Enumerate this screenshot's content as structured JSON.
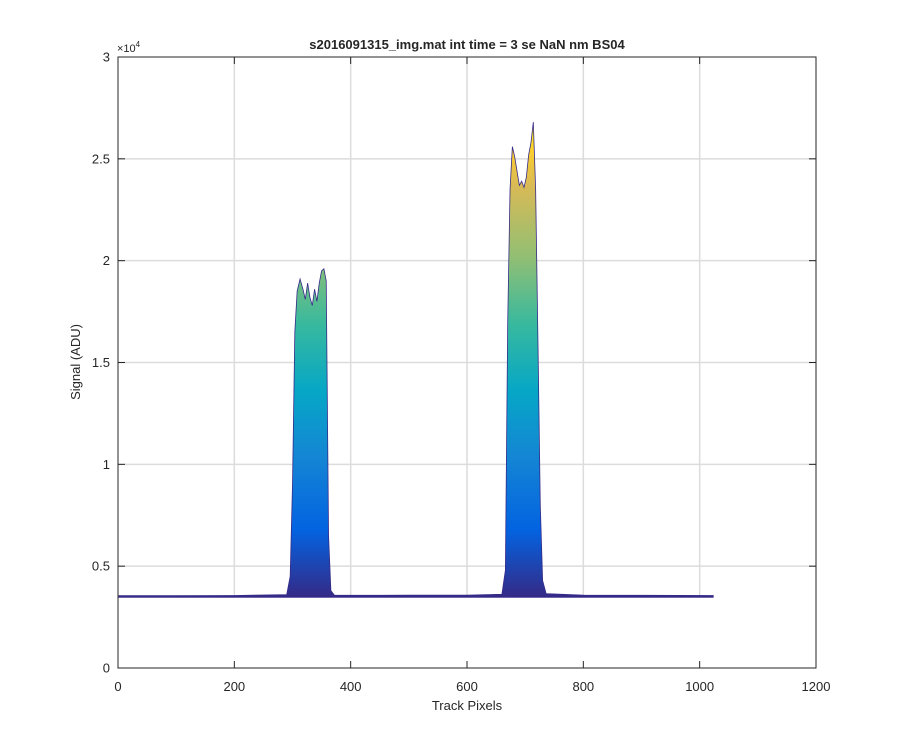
{
  "chart_data": {
    "type": "area",
    "title": "s2016091315_img.mat int time = 3 se  NaN nm BS04",
    "xlabel": "Track Pixels",
    "ylabel": "Signal (ADU)",
    "xlim": [
      0,
      1200
    ],
    "ylim": [
      0,
      30000
    ],
    "x_ticks": [
      0,
      200,
      400,
      600,
      800,
      1000,
      1200
    ],
    "x_tick_labels": [
      "0",
      "200",
      "400",
      "600",
      "800",
      "1000",
      "1200"
    ],
    "y_ticks": [
      0,
      5000,
      10000,
      15000,
      20000,
      25000,
      30000
    ],
    "y_tick_labels": [
      "0",
      "0.5",
      "1",
      "1.5",
      "2",
      "2.5",
      "3"
    ],
    "y_exponent_label": "×10",
    "y_exponent_power": "4",
    "grid": true,
    "colormap": "parula",
    "color_range": [
      3500,
      27000
    ],
    "series": [
      {
        "x": [
          1,
          100,
          200,
          290,
          296,
          300,
          304,
          308,
          313,
          318,
          322,
          326,
          330,
          334,
          338,
          342,
          346,
          350,
          354,
          358,
          362,
          366,
          372,
          400,
          500,
          600,
          660,
          666,
          670,
          674,
          678,
          682,
          686,
          690,
          694,
          698,
          702,
          706,
          710,
          714,
          718,
          722,
          726,
          730,
          736,
          800,
          900,
          1024
        ],
        "y": [
          3550,
          3555,
          3560,
          3600,
          4500,
          9000,
          16500,
          18500,
          19100,
          18600,
          18100,
          18900,
          18200,
          17800,
          18600,
          18000,
          18900,
          19500,
          19600,
          19000,
          6500,
          3800,
          3580,
          3570,
          3575,
          3580,
          3620,
          4800,
          17000,
          23500,
          25600,
          25100,
          24400,
          23700,
          23900,
          23600,
          24100,
          25200,
          25800,
          26800,
          23500,
          16000,
          8000,
          4300,
          3650,
          3580,
          3570,
          3560
        ]
      }
    ]
  }
}
